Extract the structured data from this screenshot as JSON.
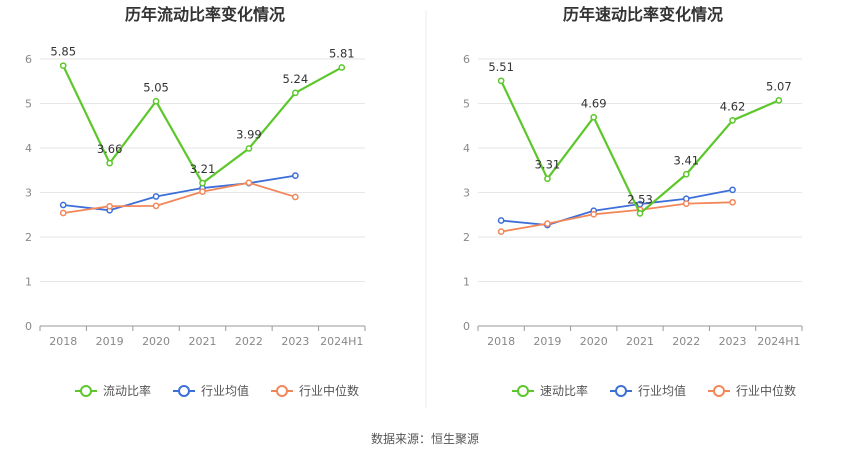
{
  "source": "数据来源：恒生聚源",
  "chart_data": [
    {
      "type": "line",
      "title": "历年流动比率变化情况",
      "categories": [
        "2018",
        "2019",
        "2020",
        "2021",
        "2022",
        "2023",
        "2024H1"
      ],
      "yticks": [
        "0",
        "1",
        "2",
        "3",
        "4",
        "5",
        "6"
      ],
      "ylim": [
        0,
        6
      ],
      "grid": true,
      "legend_position": "bottom",
      "series": [
        {
          "name": "流动比率",
          "color": "#5cc72a",
          "values": [
            5.85,
            3.66,
            5.05,
            3.21,
            3.99,
            5.24,
            5.81
          ],
          "labels": [
            "5.85",
            "3.66",
            "5.05",
            "3.21",
            "3.99",
            "5.24",
            "5.81"
          ]
        },
        {
          "name": "行业均值",
          "color": "#3d6fd9",
          "values": [
            2.72,
            2.6,
            2.91,
            3.1,
            3.21,
            3.38,
            null
          ]
        },
        {
          "name": "行业中位数",
          "color": "#f2875a",
          "values": [
            2.54,
            2.69,
            2.7,
            3.02,
            3.22,
            2.9,
            null
          ]
        }
      ]
    },
    {
      "type": "line",
      "title": "历年速动比率变化情况",
      "categories": [
        "2018",
        "2019",
        "2020",
        "2021",
        "2022",
        "2023",
        "2024H1"
      ],
      "yticks": [
        "0",
        "1",
        "2",
        "3",
        "4",
        "5",
        "6"
      ],
      "ylim": [
        0,
        6
      ],
      "grid": true,
      "legend_position": "bottom",
      "series": [
        {
          "name": "速动比率",
          "color": "#5cc72a",
          "values": [
            5.51,
            3.31,
            4.69,
            2.53,
            3.41,
            4.62,
            5.07
          ],
          "labels": [
            "5.51",
            "3.31",
            "4.69",
            "2.53",
            "3.41",
            "4.62",
            "5.07"
          ]
        },
        {
          "name": "行业均值",
          "color": "#3d6fd9",
          "values": [
            2.37,
            2.27,
            2.59,
            2.74,
            2.86,
            3.06,
            null
          ]
        },
        {
          "name": "行业中位数",
          "color": "#f2875a",
          "values": [
            2.12,
            2.3,
            2.51,
            2.61,
            2.75,
            2.78,
            null
          ]
        }
      ]
    }
  ]
}
